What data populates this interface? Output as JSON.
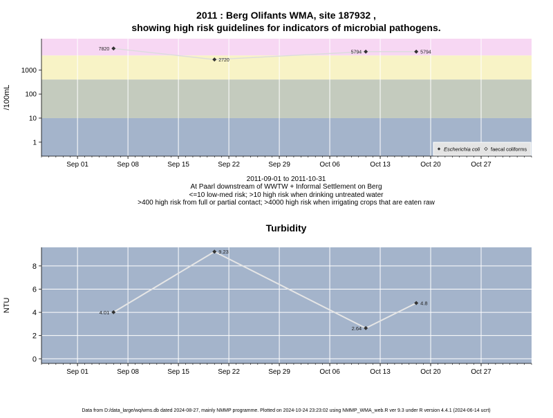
{
  "title_line1": "2011 : Berg Olifants WMA, site 187932 ,",
  "title_line2": "showing high risk guidelines for indicators of microbial pathogens.",
  "chart_data": [
    {
      "type": "scatter",
      "y_scale": "log10",
      "ylabel": "/100mL",
      "y_ticks": [
        1,
        10,
        100,
        1000
      ],
      "xlim": [
        "2011-08-27",
        "2011-11-03"
      ],
      "x_ticks": [
        {
          "date": "2011-09-01",
          "label": "Sep 01"
        },
        {
          "date": "2011-09-08",
          "label": "Sep 08"
        },
        {
          "date": "2011-09-15",
          "label": "Sep 15"
        },
        {
          "date": "2011-09-22",
          "label": "Sep 22"
        },
        {
          "date": "2011-09-29",
          "label": "Sep 29"
        },
        {
          "date": "2011-10-06",
          "label": "Oct 06"
        },
        {
          "date": "2011-10-13",
          "label": "Oct 13"
        },
        {
          "date": "2011-10-20",
          "label": "Oct 20"
        },
        {
          "date": "2011-10-27",
          "label": "Oct 27"
        }
      ],
      "risk_bands": [
        {
          "from": 4000,
          "to": 20000,
          "color": "#f7d7f3"
        },
        {
          "from": 400,
          "to": 4000,
          "color": "#f8f3c6"
        },
        {
          "from": 10,
          "to": 400,
          "color": "#c4cbbe"
        },
        {
          "from": 0.1,
          "to": 10,
          "color": "#a4b4cb"
        }
      ],
      "series": [
        {
          "name": "Escherichia coli",
          "marker": "filled-diamond",
          "points": [
            {
              "x": "2011-09-06",
              "y": 7820,
              "label": "7820",
              "label_side": "left"
            },
            {
              "x": "2011-09-20",
              "y": 2720,
              "label": "2720",
              "label_side": "right"
            },
            {
              "x": "2011-10-11",
              "y": 5794,
              "label": "5794",
              "label_side": "left"
            },
            {
              "x": "2011-10-18",
              "y": 5794,
              "label": "5794",
              "label_side": "right"
            }
          ]
        },
        {
          "name": "faecal coliforms",
          "marker": "open-diamond",
          "points": []
        }
      ],
      "legend_position": "bottom-right",
      "caption": [
        "2011-09-01 to 2011-10-31",
        "At Paarl downstream of WWTW + Informal Settlement on Berg",
        "<=10 low-med risk; >10 high risk when drinking untreated water",
        ">400 high risk from full or partial contact; >4000 high risk when irrigating crops that are eaten raw"
      ]
    },
    {
      "type": "line",
      "title": "Turbidity",
      "ylabel": "NTU",
      "ylim": [
        -0.4,
        9.6
      ],
      "y_ticks": [
        0,
        2,
        4,
        6,
        8
      ],
      "xlim": [
        "2011-08-27",
        "2011-11-03"
      ],
      "x_ticks": [
        {
          "date": "2011-09-01",
          "label": "Sep 01"
        },
        {
          "date": "2011-09-08",
          "label": "Sep 08"
        },
        {
          "date": "2011-09-15",
          "label": "Sep 15"
        },
        {
          "date": "2011-09-22",
          "label": "Sep 22"
        },
        {
          "date": "2011-09-29",
          "label": "Sep 29"
        },
        {
          "date": "2011-10-06",
          "label": "Oct 06"
        },
        {
          "date": "2011-10-13",
          "label": "Oct 13"
        },
        {
          "date": "2011-10-20",
          "label": "Oct 20"
        },
        {
          "date": "2011-10-27",
          "label": "Oct 27"
        }
      ],
      "background": "#a4b4cb",
      "grid": true,
      "series": [
        {
          "points": [
            {
              "x": "2011-09-06",
              "y": 4.01,
              "label": "4.01",
              "label_side": "left"
            },
            {
              "x": "2011-09-20",
              "y": 9.23,
              "label": "9.23",
              "label_side": "right"
            },
            {
              "x": "2011-10-11",
              "y": 2.64,
              "label": "2.64",
              "label_side": "left"
            },
            {
              "x": "2011-10-18",
              "y": 4.8,
              "label": "4.8",
              "label_side": "right"
            }
          ]
        }
      ]
    }
  ],
  "footer": "Data from D:/data_large/wq/wms.db dated 2024-08-27, mainly NMMP programme. Plotted on 2024-10-24 23:23:02 using NMMP_WMA_web.R ver 9.3 under R version 4.4.1 (2024-06-14 ucrt)"
}
